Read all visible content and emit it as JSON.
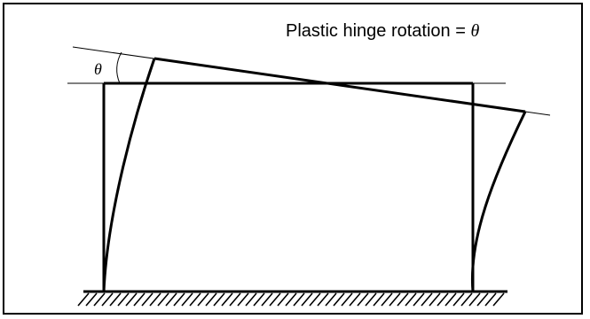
{
  "diagram": {
    "caption_text": "Plastic hinge rotation = ",
    "caption_symbol": "θ",
    "angle_label": "θ"
  },
  "colors": {
    "line": "#000000",
    "background": "#ffffff"
  }
}
